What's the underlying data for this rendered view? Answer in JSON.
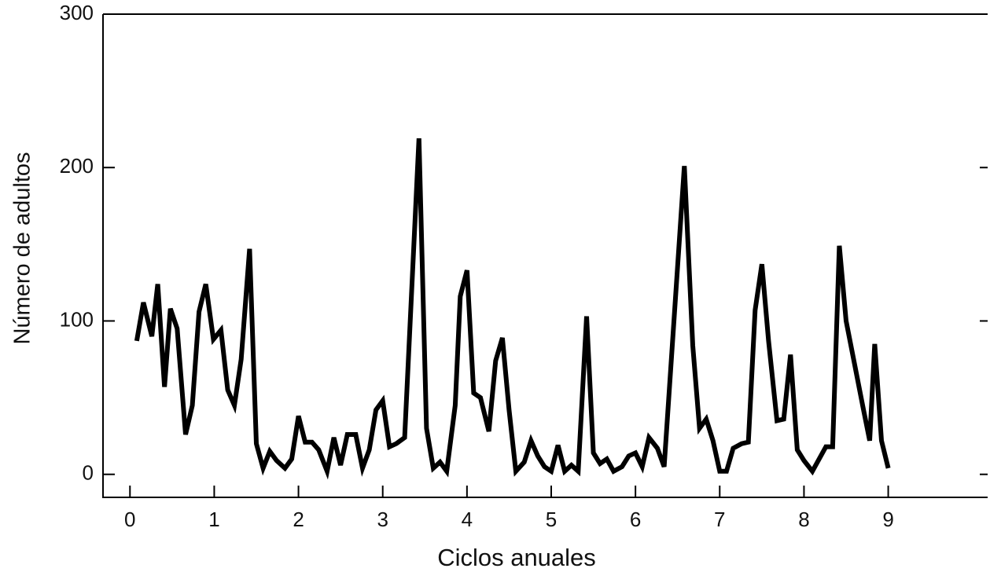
{
  "chart_data": {
    "type": "line",
    "xlabel": "Ciclos anuales",
    "ylabel": "Número de adultos",
    "x": [
      0.08,
      0.16,
      0.26,
      0.33,
      0.41,
      0.48,
      0.56,
      0.66,
      0.74,
      0.82,
      0.9,
      0.99,
      1.08,
      1.16,
      1.24,
      1.32,
      1.42,
      1.5,
      1.58,
      1.66,
      1.74,
      1.84,
      1.92,
      2.0,
      2.08,
      2.16,
      2.24,
      2.34,
      2.42,
      2.5,
      2.58,
      2.68,
      2.76,
      2.84,
      2.92,
      3.0,
      3.08,
      3.16,
      3.26,
      3.43,
      3.52,
      3.6,
      3.68,
      3.76,
      3.86,
      3.92,
      4.0,
      4.08,
      4.16,
      4.26,
      4.34,
      4.42,
      4.5,
      4.58,
      4.68,
      4.76,
      4.84,
      4.92,
      5.0,
      5.08,
      5.16,
      5.24,
      5.32,
      5.42,
      5.5,
      5.58,
      5.66,
      5.74,
      5.84,
      5.92,
      6.0,
      6.08,
      6.16,
      6.26,
      6.34,
      6.58,
      6.68,
      6.76,
      6.84,
      6.92,
      7.0,
      7.08,
      7.16,
      7.26,
      7.34,
      7.42,
      7.5,
      7.58,
      7.68,
      7.76,
      7.84,
      7.92,
      8.0,
      8.1,
      8.26,
      8.34,
      8.42,
      8.5,
      8.6,
      8.7,
      8.78,
      8.84,
      8.92,
      9.0
    ],
    "values": [
      87,
      112,
      90,
      124,
      57,
      108,
      95,
      26,
      45,
      106,
      124,
      88,
      94,
      55,
      45,
      75,
      147,
      20,
      4,
      15,
      9,
      4,
      10,
      38,
      21,
      21,
      16,
      2,
      24,
      6,
      26,
      26,
      4,
      16,
      42,
      48,
      18,
      20,
      24,
      219,
      30,
      4,
      8,
      2,
      45,
      116,
      133,
      53,
      50,
      28,
      74,
      89,
      42,
      2,
      8,
      22,
      12,
      5,
      2,
      19,
      2,
      6,
      2,
      103,
      14,
      7,
      10,
      2,
      5,
      12,
      14,
      5,
      24,
      17,
      5,
      201,
      84,
      30,
      36,
      22,
      2,
      2,
      17,
      20,
      21,
      107,
      137,
      87,
      35,
      36,
      78,
      16,
      9,
      2,
      18,
      18,
      149,
      100,
      72,
      44,
      22,
      85,
      22,
      4
    ],
    "color": "#000000",
    "xlim": [
      -0.32,
      10.18
    ],
    "xticks": [
      0,
      1,
      2,
      3,
      4,
      5,
      6,
      7,
      8,
      9
    ],
    "ylim": [
      -15,
      300
    ],
    "yticks": [
      0,
      100,
      200,
      300
    ]
  }
}
